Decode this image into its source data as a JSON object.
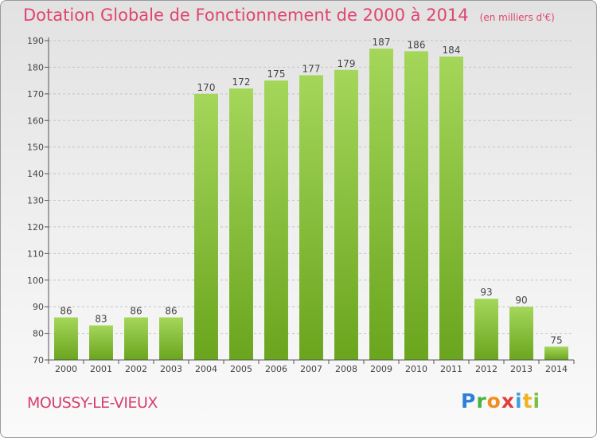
{
  "title": "Dotation Globale de Fonctionnement de 2000 à 2014",
  "subtitle": "(en milliers d'€)",
  "commune": "MOUSSY-LE-VIEUX",
  "logo": {
    "p": "P",
    "r": "r",
    "o": "o",
    "x": "x",
    "i": "i",
    "t": "t",
    "i2": "i"
  },
  "colors": {
    "bar_light": "#a4d65a",
    "bar_dark": "#6aa51e",
    "title": "#e0456e",
    "commune": "#d63e6c"
  },
  "chart_data": {
    "type": "bar",
    "categories": [
      "2000",
      "2001",
      "2002",
      "2003",
      "2004",
      "2005",
      "2006",
      "2007",
      "2008",
      "2009",
      "2010",
      "2011",
      "2012",
      "2013",
      "2014"
    ],
    "values": [
      86,
      83,
      86,
      86,
      170,
      172,
      175,
      177,
      179,
      187,
      186,
      184,
      93,
      90,
      75
    ],
    "ylim": [
      70,
      190
    ],
    "yticks": [
      70,
      80,
      90,
      100,
      110,
      120,
      130,
      140,
      150,
      160,
      170,
      180,
      190
    ],
    "grid": true,
    "xlabel": "",
    "ylabel": ""
  }
}
